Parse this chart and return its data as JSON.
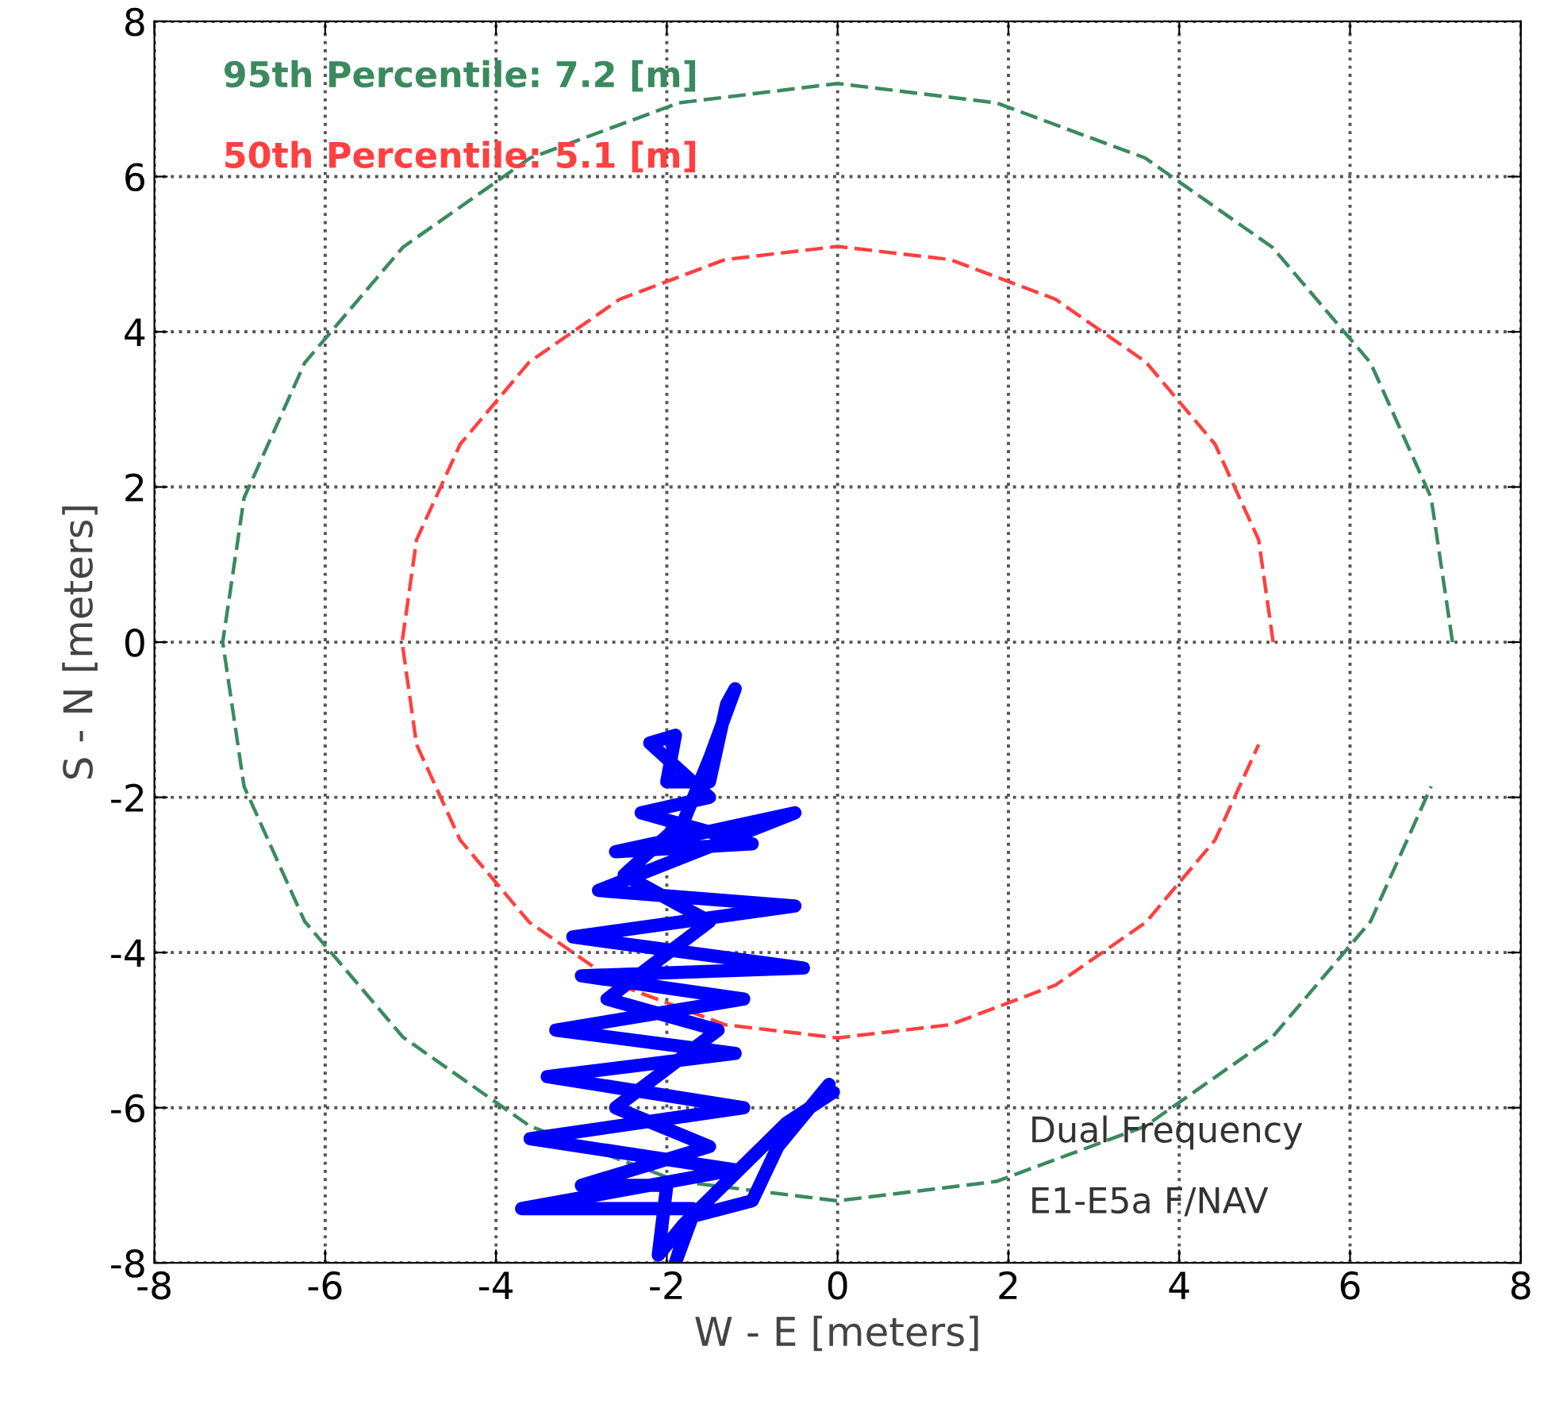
{
  "chart_data": {
    "type": "line",
    "xlabel": "W - E [meters]",
    "ylabel": "S - N [meters]",
    "xlim": [
      -8,
      8
    ],
    "ylim": [
      -8,
      8
    ],
    "xticks": [
      -8,
      -6,
      -4,
      -2,
      0,
      2,
      4,
      6,
      8
    ],
    "yticks": [
      -8,
      -6,
      -4,
      -2,
      0,
      2,
      4,
      6,
      8
    ],
    "grid": true,
    "marker": "none",
    "series": [
      {
        "color": "#3a8a5e",
        "line_style": "dashed",
        "x": [
          7.2,
          6.95,
          6.24,
          5.09,
          3.6,
          1.86,
          0,
          -1.86,
          -3.6,
          -5.09,
          -6.24,
          -6.95,
          -7.2,
          -6.95,
          -6.24,
          -5.09,
          -3.6,
          -1.86,
          0,
          1.86,
          3.6,
          5.09,
          6.24,
          6.95
        ],
        "values": [
          0,
          1.86,
          3.6,
          5.09,
          6.24,
          6.95,
          7.2,
          6.95,
          6.24,
          5.09,
          3.6,
          1.86,
          0,
          -1.86,
          -3.6,
          -5.09,
          -6.24,
          -6.95,
          -7.2,
          -6.95,
          -6.24,
          -5.09,
          -3.6,
          -1.86
        ]
      },
      {
        "color": "#ff4040",
        "line_style": "dashed",
        "x": [
          5.1,
          4.93,
          4.42,
          3.61,
          2.55,
          1.32,
          0,
          -1.32,
          -2.55,
          -3.61,
          -4.42,
          -4.93,
          -5.1,
          -4.93,
          -4.42,
          -3.61,
          -2.55,
          -1.32,
          0,
          1.32,
          2.55,
          3.61,
          4.42,
          4.93
        ],
        "values": [
          0,
          1.32,
          2.55,
          3.61,
          4.42,
          4.93,
          5.1,
          4.93,
          4.42,
          3.61,
          2.55,
          1.32,
          0,
          -1.32,
          -2.55,
          -3.61,
          -4.42,
          -4.93,
          -5.1,
          -4.93,
          -4.42,
          -3.61,
          -2.55,
          -1.32
        ]
      },
      {
        "color": "#0000ff",
        "line_style": "solid",
        "x": [
          -0.1,
          -0.7,
          -1.0,
          -1.7,
          -1.9,
          -1.7,
          -3.7,
          -1.2,
          -3.6,
          -1.1,
          -3.4,
          -1.2,
          -3.3,
          -1.1,
          -3.0,
          -0.4,
          -3.1,
          -0.5,
          -2.8,
          -0.5,
          -2.6,
          -1.0,
          -2.3,
          -1.5,
          -2.2,
          -1.9,
          -2.0,
          -1.5,
          -1.3,
          -1.2,
          -1.5,
          -1.8,
          -2.5,
          -1.5,
          -2.7,
          -1.4,
          -2.6,
          -1.5,
          -3.0,
          -2.0,
          -2.1,
          -1.8,
          -0.6,
          -0.05
        ],
        "values": [
          -5.7,
          -6.5,
          -7.2,
          -7.4,
          -8.0,
          -7.3,
          -7.3,
          -6.8,
          -6.4,
          -6.0,
          -5.6,
          -5.3,
          -5.0,
          -4.6,
          -4.3,
          -4.2,
          -3.8,
          -3.4,
          -3.2,
          -2.2,
          -2.7,
          -2.6,
          -2.2,
          -2.0,
          -1.3,
          -1.2,
          -1.8,
          -1.8,
          -0.8,
          -0.6,
          -1.5,
          -2.3,
          -3.0,
          -3.6,
          -4.6,
          -5.0,
          -6.0,
          -6.5,
          -7.0,
          -7.0,
          -7.9,
          -7.5,
          -6.2,
          -5.8
        ]
      }
    ],
    "annotations": [
      "95th Percentile: 7.2 [m]",
      "50th Percentile: 5.1 [m]",
      "Dual Frequency",
      "E1-E5a F/NAV"
    ]
  }
}
